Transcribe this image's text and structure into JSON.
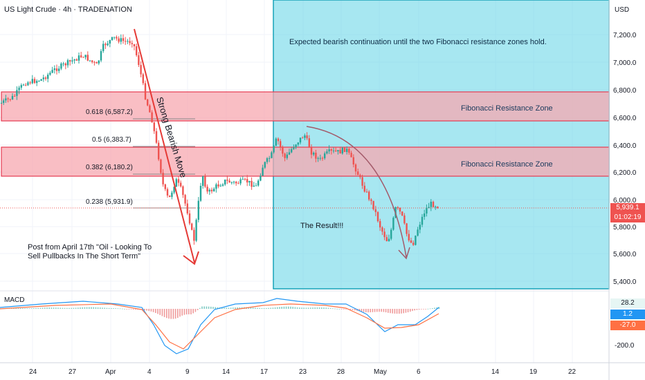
{
  "symbol_title": "US Light Crude · 4h · TRADENATION",
  "currency": "USD",
  "price_axis_labels": [
    "7,200.0",
    "7,000.0",
    "6,800.0",
    "6,600.0",
    "6,400.0",
    "6,200.0",
    "6,000.0",
    "5,800.0",
    "5,600.0",
    "5,400.0"
  ],
  "current_price": "5,939.1",
  "countdown": "01:02:19",
  "time_axis_labels": [
    "24",
    "27",
    "Apr",
    "4",
    "9",
    "14",
    "17",
    "23",
    "28",
    "May",
    "6",
    "14",
    "19",
    "22"
  ],
  "fib_labels": {
    "l618": "0.618 (6,587.2)",
    "l5": "0.5 (6,383.7)",
    "l382": "0.382 (6,180.2)",
    "l236": "0.238 (5,931.9)"
  },
  "zones": {
    "upper_label": "Fibonacci Resistance Zone",
    "lower_label": "Fibonacci Resistance Zone"
  },
  "annotations": {
    "projection_text": "Expected bearish continuation until the two Fibonacci resistance zones hold.",
    "result_text": "The Result!!!",
    "move_text": "Strong Bearish Move",
    "post_line1": "Post from April 17th \"Oil - Looking To",
    "post_line2": "Sell Pullbacks In The Short Term\""
  },
  "macd": {
    "label": "MACD",
    "axis_label": "-200.0",
    "values": [
      "28.2",
      "1.2",
      "-27.0"
    ]
  },
  "colors": {
    "zone_fill": "#f7a8b0",
    "projection_fill": "#5ed3e6",
    "bull": "#26a69a",
    "bear": "#ef5350",
    "arrow": "#e53935",
    "curve": "#a35a6a"
  }
}
